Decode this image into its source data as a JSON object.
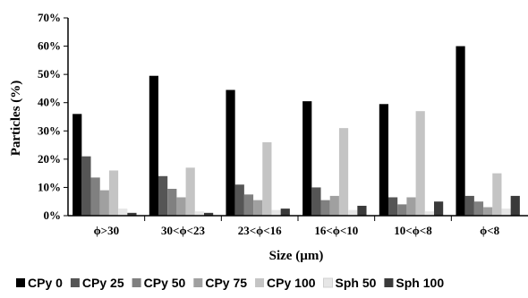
{
  "chart_data": {
    "type": "bar",
    "title": "",
    "xlabel": "Size (µm)",
    "ylabel": "Particles (%)",
    "ylim": [
      0,
      70
    ],
    "yticks": [
      "0%",
      "10%",
      "20%",
      "30%",
      "40%",
      "50%",
      "60%",
      "70%"
    ],
    "ytick_values": [
      0,
      10,
      20,
      30,
      40,
      50,
      60,
      70
    ],
    "grid": false,
    "legend_position": "bottom",
    "categories": [
      "ϕ>30",
      "30<ϕ<23",
      "23<ϕ<16",
      "16<ϕ<10",
      "10<ϕ<8",
      "ϕ<8"
    ],
    "series": [
      {
        "name": "CPy 0",
        "color": "#000000",
        "values": [
          36,
          49.5,
          44.5,
          40.5,
          39.5,
          60
        ]
      },
      {
        "name": "CPy 25",
        "color": "#555555",
        "values": [
          21,
          14,
          11,
          10,
          6.5,
          7
        ]
      },
      {
        "name": "CPy 50",
        "color": "#808080",
        "values": [
          13.5,
          9.5,
          7.5,
          5.5,
          4,
          5
        ]
      },
      {
        "name": "CPy 75",
        "color": "#a0a0a0",
        "values": [
          9,
          6.5,
          5.5,
          7,
          6.5,
          3
        ]
      },
      {
        "name": "CPy 100",
        "color": "#c4c4c4",
        "values": [
          16,
          17,
          26,
          31,
          37,
          15
        ]
      },
      {
        "name": "Sph 50",
        "color": "#e6e6e6",
        "values": [
          2.5,
          1.5,
          2,
          2,
          1.5,
          2.5
        ]
      },
      {
        "name": "Sph 100",
        "color": "#3a3a3a",
        "values": [
          1,
          1,
          2.5,
          3.5,
          5,
          7
        ]
      }
    ]
  }
}
